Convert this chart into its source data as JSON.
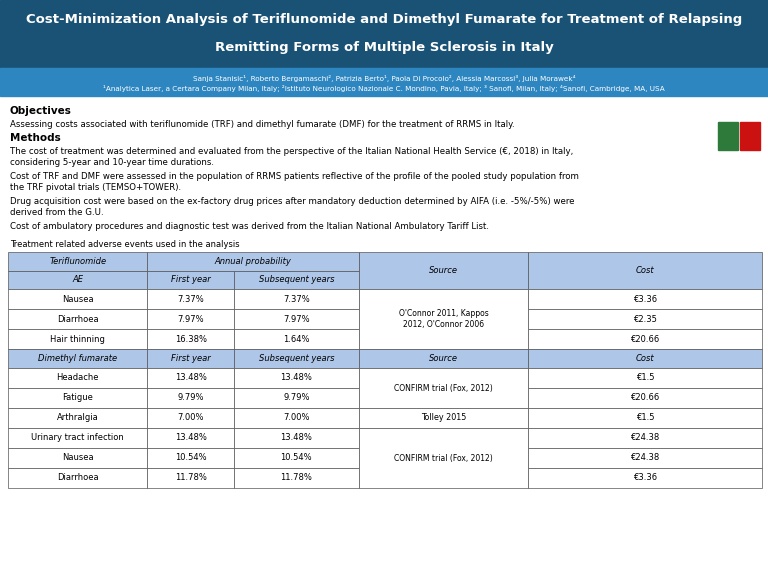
{
  "title_line1": "Cost-Minimization Analysis of Teriflunomide and Dimethyl Fumarate for Treatment of Relapsing",
  "title_line2": "Remitting Forms of Multiple Sclerosis in Italy",
  "title_bg": "#1a5276",
  "subtitle_bg": "#2e86c1",
  "subtitle_text1": "Sanja Stanisic¹, Roberto Bergamaschi², Patrizia Berto¹, Paola Di Procolo², Alessia Marcossi³, Julia Morawek⁴",
  "subtitle_text2": "¹Analytica Laser, a Certara Company Milan, Italy; ²Istituto Neurologico Nazionale C. Mondino, Pavia, Italy; ³ Sanofi, Milan, Italy; ⁴Sanofi, Cambridge, MA, USA",
  "objectives_title": "Objectives",
  "objectives_text": "Assessing costs associated with teriflunomide (TRF) and dimethyl fumarate (DMF) for the treatment of RRMS in Italy.",
  "methods_title": "Methods",
  "methods_text1": "The cost of treatment was determined and evaluated from the perspective of the Italian National Health Service (€, 2018) in Italy,\nconsidering 5-year and 10-year time durations.",
  "methods_text2": "Cost of TRF and DMF were assessed in the population of RRMS patients reflective of the profile of the pooled study population from\nthe TRF pivotal trials (TEMSO+TOWER).",
  "methods_text3": "Drug acquisition cost were based on the ex-factory drug prices after mandatory deduction determined by AIFA (i.e. -5%/-5%) were\nderived from the G.U.",
  "methods_text4": "Cost of ambulatory procedures and diagnostic test was derived from the Italian National Ambulatory Tariff List.",
  "table_label": "Treatment related adverse events used in the analysis",
  "table_header_bg": "#aec6e8",
  "table_body_bg": "#ffffff",
  "table_border": "#555555",
  "teriflunomide_rows": [
    [
      "Nausea",
      "7.37%",
      "7.37%",
      "",
      "€3.36"
    ],
    [
      "Diarrhoea",
      "7.97%",
      "7.97%",
      "O'Connor 2011, Kappos\n2012, O'Connor 2006",
      "€2.35"
    ],
    [
      "Hair thinning",
      "16.38%",
      "1.64%",
      "",
      "€20.66"
    ]
  ],
  "dimethyl_rows": [
    [
      "Headache",
      "13.48%",
      "13.48%",
      "CONFIRM trial (Fox, 2012)",
      "€1.5"
    ],
    [
      "Fatigue",
      "9.79%",
      "9.79%",
      "CONFIRM trial (Fox, 2012)",
      "€20.66"
    ],
    [
      "Arthralgia",
      "7.00%",
      "7.00%",
      "Tolley 2015",
      "€1.5"
    ],
    [
      "Urinary tract infection",
      "13.48%",
      "13.48%",
      "",
      "€24.38"
    ],
    [
      "Nausea",
      "10.54%",
      "10.54%",
      "CONFIRM trial (Fox, 2012)",
      "€24.38"
    ],
    [
      "Diarrhoea",
      "11.78%",
      "11.78%",
      "",
      "€3.36"
    ]
  ],
  "flag_green": "#2d7a3a",
  "flag_red": "#cc1111",
  "bg_color": "#ffffff"
}
